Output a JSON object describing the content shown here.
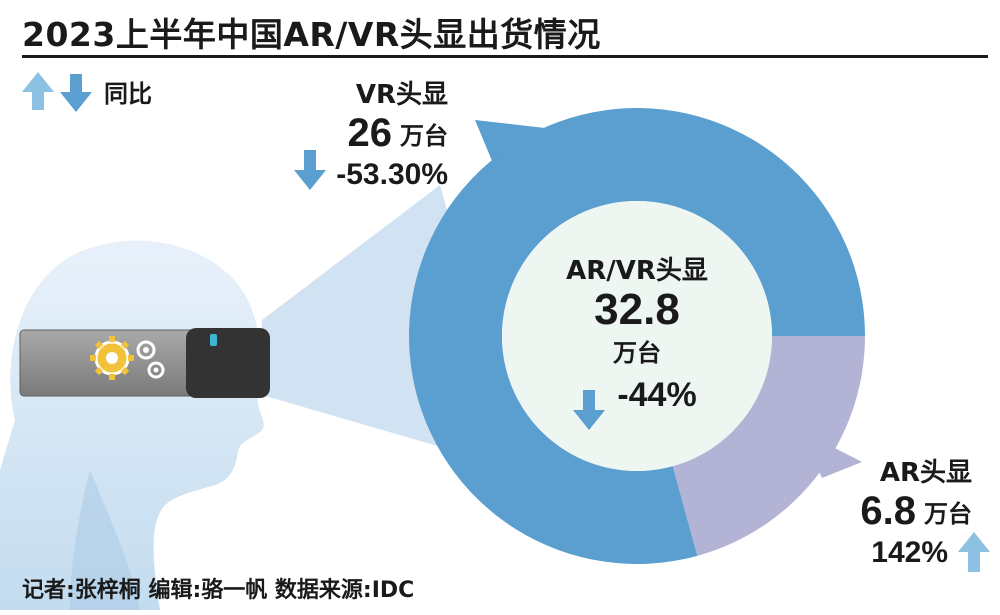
{
  "header": {
    "title": "2023上半年中国AR/VR头显出货情况"
  },
  "legend": {
    "label": "同比",
    "up_icon": "arrow-up-icon",
    "down_icon": "arrow-down-icon"
  },
  "colors": {
    "vr_segment": "#5a9fcf",
    "ar_segment": "#b3b3d6",
    "inner_circle": "#eef6f2",
    "beam": "#c9def0",
    "arrow_up": "#8cc1e3",
    "arrow_down": "#5a9fcf"
  },
  "chart_data": {
    "type": "pie",
    "variant": "donut",
    "title": "2023上半年中国AR/VR头显出货情况",
    "unit": "万台",
    "total": {
      "label": "AR/VR头显",
      "value": 32.8,
      "value_text": "32.8",
      "unit": "万台",
      "yoy": "-44%",
      "yoy_direction": "down"
    },
    "series": [
      {
        "name": "VR头显",
        "value": 26,
        "value_text": "26",
        "unit": "万台",
        "yoy": "-53.30%",
        "yoy_direction": "down"
      },
      {
        "name": "AR头显",
        "value": 6.8,
        "value_text": "6.8",
        "unit": "万台",
        "yoy": "142%",
        "yoy_direction": "up"
      }
    ]
  },
  "footer": {
    "credits": "记者:张梓桐  编辑:骆一帆  数据来源:IDC"
  }
}
